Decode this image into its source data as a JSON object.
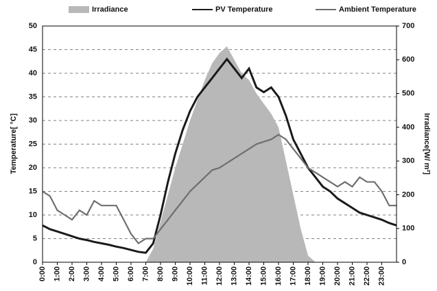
{
  "chart_data": {
    "type": "line",
    "y_label": "Temperature[ °C]",
    "y2_label": "Irradiance[W/ m²]",
    "x": [
      0,
      0.5,
      1,
      1.5,
      2,
      2.5,
      3,
      3.5,
      4,
      4.5,
      5,
      5.5,
      6,
      6.5,
      7,
      7.5,
      8,
      8.5,
      9,
      9.5,
      10,
      10.5,
      11,
      11.5,
      12,
      12.5,
      13,
      13.5,
      14,
      14.5,
      15,
      15.5,
      16,
      16.5,
      17,
      17.5,
      18,
      18.5,
      19,
      19.5,
      20,
      20.5,
      21,
      21.5,
      22,
      22.5,
      23,
      23.5,
      24
    ],
    "series": [
      {
        "name": "Irradiance",
        "type": "area",
        "axis": "y2",
        "color": "#b8b8b8",
        "values": [
          0,
          0,
          0,
          0,
          0,
          0,
          0,
          0,
          0,
          0,
          0,
          0,
          0,
          0,
          0,
          40,
          120,
          200,
          280,
          350,
          420,
          480,
          540,
          590,
          620,
          640,
          600,
          560,
          540,
          500,
          470,
          440,
          400,
          300,
          200,
          100,
          20,
          0,
          0,
          0,
          0,
          0,
          0,
          0,
          0,
          0,
          0,
          0,
          0
        ]
      },
      {
        "name": "PV Temperature",
        "type": "line",
        "color": "#1a1a1a",
        "values": [
          7.8,
          7,
          6.5,
          6,
          5.5,
          5,
          4.7,
          4.3,
          4,
          3.7,
          3.3,
          3,
          2.6,
          2.2,
          2,
          4,
          10,
          17,
          23,
          28,
          32,
          35,
          37,
          39,
          41,
          43,
          41,
          39,
          41,
          37,
          36,
          37,
          35,
          31,
          26,
          23,
          20,
          18,
          16,
          15,
          13.5,
          12.5,
          11.5,
          10.5,
          10,
          9.5,
          9,
          8.3,
          7.8
        ]
      },
      {
        "name": "Ambient Temperature",
        "type": "line",
        "color": "#6e6e6e",
        "values": [
          15,
          14,
          11,
          10,
          9,
          11,
          10,
          13,
          12,
          12,
          12,
          9,
          6,
          4,
          5,
          5,
          7,
          9,
          11,
          13,
          15,
          16.5,
          18,
          19.5,
          20,
          21,
          22,
          23,
          24,
          25,
          25.5,
          26,
          27,
          26,
          24,
          22,
          20,
          19,
          18,
          17,
          16,
          17,
          16,
          18,
          17,
          17,
          15,
          12,
          12
        ]
      }
    ],
    "xlim": [
      0,
      24
    ],
    "xticks": [
      {
        "value": 0,
        "label": "0:00"
      },
      {
        "value": 1,
        "label": "1:00"
      },
      {
        "value": 2,
        "label": "2:00"
      },
      {
        "value": 3,
        "label": "3:00"
      },
      {
        "value": 4,
        "label": "4:00"
      },
      {
        "value": 5,
        "label": "5:00"
      },
      {
        "value": 6,
        "label": "6:00"
      },
      {
        "value": 7,
        "label": "7:00"
      },
      {
        "value": 8,
        "label": "8:00"
      },
      {
        "value": 9,
        "label": "9:00"
      },
      {
        "value": 10,
        "label": "10:00"
      },
      {
        "value": 11,
        "label": "11:00"
      },
      {
        "value": 12,
        "label": "12:00"
      },
      {
        "value": 13,
        "label": "13:00"
      },
      {
        "value": 14,
        "label": "14:00"
      },
      {
        "value": 15,
        "label": "15:00"
      },
      {
        "value": 16,
        "label": "16:00"
      },
      {
        "value": 17,
        "label": "17:00"
      },
      {
        "value": 18,
        "label": "18:00"
      },
      {
        "value": 19,
        "label": "19:00"
      },
      {
        "value": 20,
        "label": "20:00"
      },
      {
        "value": 21,
        "label": "21:00"
      },
      {
        "value": 22,
        "label": "22:00"
      },
      {
        "value": 23,
        "label": "23:00"
      }
    ],
    "ylim": [
      0,
      50
    ],
    "yticks": [
      0,
      5,
      10,
      15,
      20,
      25,
      30,
      35,
      40,
      45,
      50
    ],
    "y2lim": [
      0,
      700
    ],
    "y2ticks": [
      0,
      100,
      200,
      300,
      400,
      500,
      600,
      700
    ],
    "grid": true,
    "legend": "top"
  }
}
